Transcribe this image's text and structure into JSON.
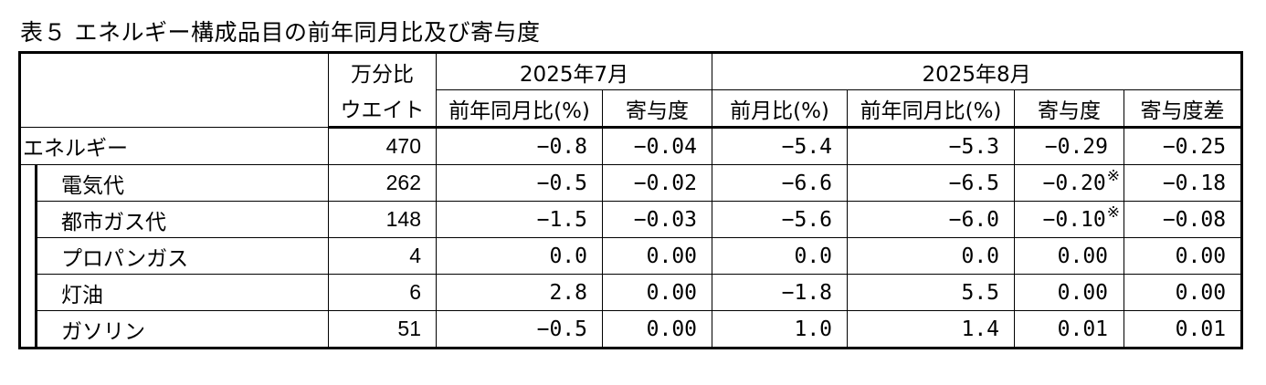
{
  "title": "表５ エネルギー構成品目の前年同月比及び寄与度",
  "header": {
    "weight_top": "万分比",
    "weight_bottom": "ウエイト",
    "period1": "2025年7月",
    "period2": "2025年8月",
    "cols": [
      "前年同月比(%)",
      "寄与度",
      "前月比(%)",
      "前年同月比(%)",
      "寄与度",
      "寄与度差"
    ]
  },
  "rows": [
    {
      "name": "エネルギー",
      "weight": "470",
      "v": [
        "−0.8",
        "−0.04",
        "−5.4",
        "−5.3",
        "−0.29",
        "−0.25"
      ],
      "note": ""
    },
    {
      "name": "電気代",
      "weight": "262",
      "v": [
        "−0.5",
        "−0.02",
        "−6.6",
        "−6.5",
        "−0.20",
        "−0.18"
      ],
      "note": "※"
    },
    {
      "name": "都市ガス代",
      "weight": "148",
      "v": [
        "−1.5",
        "−0.03",
        "−5.6",
        "−6.0",
        "−0.10",
        "−0.08"
      ],
      "note": "※"
    },
    {
      "name": "プロパンガス",
      "weight": "4",
      "v": [
        "0.0",
        "0.00",
        "0.0",
        "0.0",
        "0.00",
        "0.00"
      ],
      "note": ""
    },
    {
      "name": "灯油",
      "weight": "6",
      "v": [
        "2.8",
        "0.00",
        "−1.8",
        "5.5",
        "0.00",
        "0.00"
      ],
      "note": ""
    },
    {
      "name": "ガソリン",
      "weight": "51",
      "v": [
        "−0.5",
        "0.00",
        "1.0",
        "1.4",
        "0.01",
        "0.01"
      ],
      "note": ""
    }
  ]
}
